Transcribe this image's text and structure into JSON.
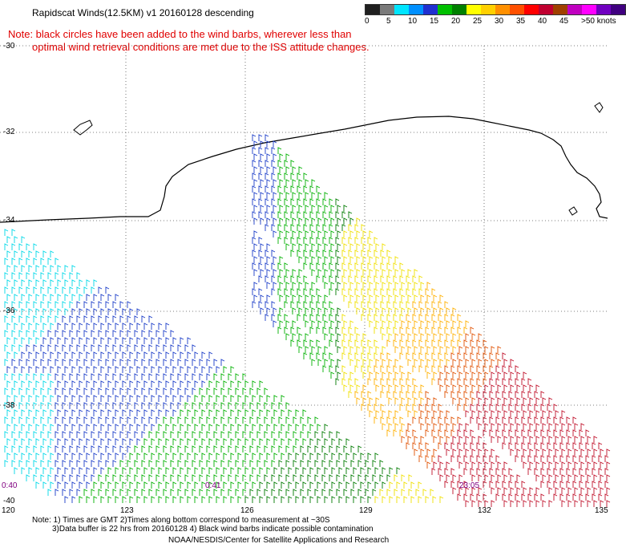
{
  "title": "Rapidscat Winds(12.5KM) v1 20160128 descending",
  "note": {
    "line1": "Note: black circles have been added to the wind barbs, wherever less than",
    "line2": "optimal wind retrieval conditions are met due to the ISS attitude changes."
  },
  "legend": {
    "labels": [
      "0",
      "5",
      "10",
      "15",
      "20",
      "25",
      "30",
      "35",
      "40",
      "45",
      ">50 knots"
    ],
    "colors": [
      "#202020",
      "#7a7a7a",
      "#00e5ff",
      "#0090ff",
      "#2030d0",
      "#00c000",
      "#008000",
      "#ffff00",
      "#ffd000",
      "#ff9000",
      "#ff5000",
      "#ff0000",
      "#c00030",
      "#a04000",
      "#c000c0",
      "#ff00ff",
      "#7000c0",
      "#400080"
    ]
  },
  "map": {
    "latitudes": [
      "-30",
      "-32",
      "-34",
      "-36",
      "-38",
      "-40"
    ],
    "longitudes": [
      "120",
      "123",
      "126",
      "129",
      "132",
      "135"
    ],
    "times": [
      "0:40",
      "0:41",
      "23:05"
    ]
  },
  "footer": {
    "line1": "Note: 1) Times are GMT 2)Times along bottom correspond to measurement at ~30S",
    "line2": "3)Data buffer is 22 hrs from 20160128 4) Black wind barbs indicate possible contamination",
    "line3": "NOAA/NESDIS/Center for Satellite Applications and Research"
  }
}
